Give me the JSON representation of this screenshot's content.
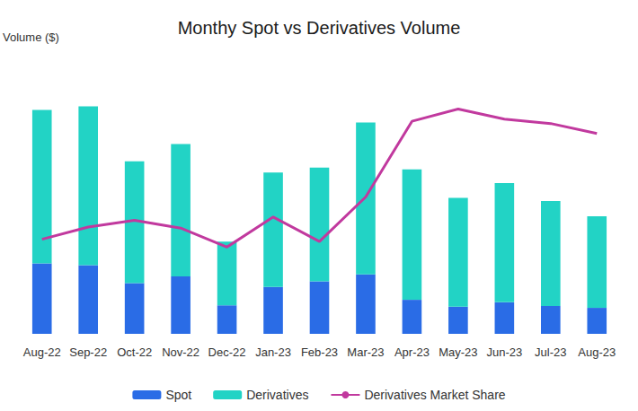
{
  "chart_data": {
    "type": "bar",
    "title": "Monthy Spot vs Derivatives Volume",
    "y_label": "Volume ($)",
    "categories": [
      "Aug-22",
      "Sep-22",
      "Oct-22",
      "Nov-22",
      "Dec-22",
      "Jan-23",
      "Feb-23",
      "Mar-23",
      "Apr-23",
      "May-23",
      "Jun-23",
      "Jul-23",
      "Aug-23"
    ],
    "series": [
      {
        "name": "Spot",
        "type": "bar",
        "color": "#2a6ce6",
        "values": [
          1.14,
          1.11,
          0.82,
          0.93,
          0.46,
          0.76,
          0.85,
          0.96,
          0.55,
          0.44,
          0.51,
          0.45,
          0.42
        ]
      },
      {
        "name": "Derivatives",
        "type": "bar",
        "color": "#22d3c5",
        "values": [
          2.48,
          2.57,
          1.97,
          2.14,
          1.03,
          1.85,
          1.84,
          2.46,
          2.11,
          1.76,
          1.93,
          1.7,
          1.48
        ]
      },
      {
        "name": "Derivatives Market Share",
        "type": "line",
        "axis": "y2",
        "color": "#c1399e",
        "values": [
          68.5,
          69.6,
          70.2,
          69.5,
          67.8,
          70.5,
          68.3,
          72.3,
          79.1,
          80.2,
          79.3,
          78.9,
          78.0
        ]
      }
    ],
    "ylim": [
      0,
      4.5
    ],
    "yticks": [
      0,
      1.5,
      3,
      4.5
    ],
    "y2lim": [
      60,
      85
    ],
    "y2ticks": [
      60,
      65,
      70,
      75,
      80,
      85
    ],
    "stacked": true,
    "grid": false,
    "tick_labels": false,
    "legend": "bottom"
  }
}
